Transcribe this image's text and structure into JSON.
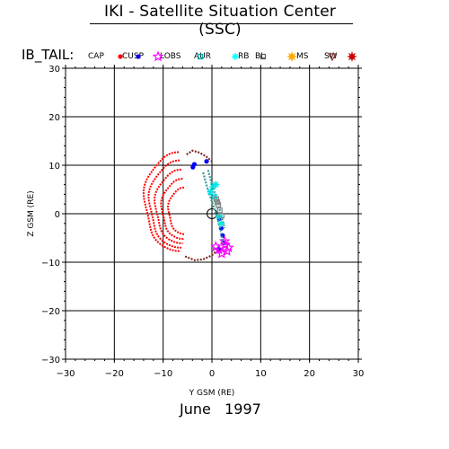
{
  "header": {
    "title": "IKI - Satellite Situation Center (SSC)",
    "date": "June   1997"
  },
  "chart_data": {
    "type": "scatter",
    "title": "IKI - Satellite Situation Center (SSC)",
    "subtitle": "June   1997",
    "xlabel": "Y GSM (RE)",
    "ylabel": "Z GSM (RE)",
    "xlim": [
      -30,
      30
    ],
    "ylim": [
      -30,
      30
    ],
    "xticks": [
      -30,
      -20,
      -10,
      0,
      10,
      20,
      30
    ],
    "yticks": [
      -30,
      -20,
      -10,
      0,
      10,
      20,
      30
    ],
    "grid": true,
    "earth_marker": {
      "x": 0,
      "y": 0
    },
    "legend": {
      "title": "IB_TAIL:",
      "placement": "top",
      "entries": [
        {
          "label": "CAP",
          "symbol": "dot",
          "color": "#ff0000"
        },
        {
          "label": "CUSP",
          "symbol": "dot",
          "color": "#0000ff"
        },
        {
          "label": "LOBS",
          "symbol": "star",
          "color": "#ff00ff"
        },
        {
          "label": "AUR",
          "symbol": "square",
          "color": "#00aaaa"
        },
        {
          "label": "RB",
          "symbol": "asterisk",
          "color": "#00ffff"
        },
        {
          "label": "BL",
          "symbol": "square",
          "color": "#666666"
        },
        {
          "label": "MS",
          "symbol": "burst",
          "color": "#ffaa00"
        },
        {
          "label": "SW",
          "symbol": "triangle-down",
          "color": "#993333"
        },
        {
          "label": "",
          "symbol": "burst",
          "color": "#cc0000"
        }
      ]
    },
    "series": [
      {
        "name": "CAP",
        "color": "#ff0000",
        "loops": [
          {
            "cx": -6.8,
            "cy": 2.5,
            "rx": 7.0,
            "ry": 10.2
          },
          {
            "cx": -6.6,
            "cy": 2.0,
            "rx": 6.2,
            "ry": 9.0
          },
          {
            "cx": -6.3,
            "cy": 1.5,
            "rx": 5.3,
            "ry": 7.6
          },
          {
            "cx": -6.0,
            "cy": 1.0,
            "rx": 4.3,
            "ry": 6.2
          },
          {
            "cx": -5.7,
            "cy": 0.6,
            "rx": 3.2,
            "ry": 4.8
          }
        ]
      },
      {
        "name": "SW",
        "color": "#7a2a2a",
        "arcs": [
          {
            "x": [
              -5.2,
              -4.0,
              -2.5,
              -1.2,
              0.0
            ],
            "y": [
              12.2,
              13.0,
              12.6,
              11.8,
              10.8
            ]
          },
          {
            "x": [
              -5.5,
              -3.5,
              -1.8,
              0.0,
              0.8
            ],
            "y": [
              -8.8,
              -9.6,
              -9.4,
              -8.6,
              -7.8
            ]
          }
        ]
      },
      {
        "name": "CUSP",
        "color": "#0000ff",
        "points": [
          {
            "x": -1.1,
            "y": 10.8
          },
          {
            "x": -3.6,
            "y": 10.2
          },
          {
            "x": -3.9,
            "y": 9.6
          },
          {
            "x": 1.5,
            "y": -1.0
          },
          {
            "x": 1.9,
            "y": -3.0
          },
          {
            "x": 2.2,
            "y": -4.5
          },
          {
            "x": 2.4,
            "y": -6.0
          },
          {
            "x": 1.4,
            "y": -7.3
          }
        ]
      },
      {
        "name": "LOBS",
        "color": "#ff00ff",
        "points": [
          {
            "x": 2.7,
            "y": -6.4
          },
          {
            "x": 3.4,
            "y": -7.0
          },
          {
            "x": 1.4,
            "y": -7.4
          },
          {
            "x": 2.0,
            "y": -8.2
          },
          {
            "x": 3.1,
            "y": -7.7
          },
          {
            "x": 0.8,
            "y": -6.8
          },
          {
            "x": 2.6,
            "y": -5.7
          }
        ]
      },
      {
        "name": "AUR",
        "color": "#339999",
        "arcs": [
          {
            "x": [
              -1.8,
              -1.0,
              0.0,
              1.0,
              1.8,
              2.2
            ],
            "y": [
              8.5,
              5.5,
              2.5,
              -0.5,
              -3.5,
              -6.0
            ]
          },
          {
            "x": [
              -0.8,
              0.0,
              1.0,
              1.8,
              2.6
            ],
            "y": [
              9.0,
              6.0,
              3.0,
              0.0,
              -3.0
            ]
          }
        ]
      },
      {
        "name": "RB",
        "color": "#00e5e5",
        "points": [
          {
            "x": -0.3,
            "y": 4.5
          },
          {
            "x": 0.2,
            "y": 5.6
          },
          {
            "x": 0.8,
            "y": 6.0
          },
          {
            "x": 1.5,
            "y": -0.6
          },
          {
            "x": 1.9,
            "y": -2.0
          },
          {
            "x": 0.6,
            "y": 3.5
          }
        ]
      },
      {
        "name": "BL",
        "color": "#888888",
        "points": [
          {
            "x": 0.9,
            "y": 3.0
          },
          {
            "x": 1.3,
            "y": 1.8
          },
          {
            "x": 1.6,
            "y": 0.7
          },
          {
            "x": 2.0,
            "y": -0.4
          },
          {
            "x": 1.1,
            "y": 2.4
          }
        ]
      }
    ]
  }
}
